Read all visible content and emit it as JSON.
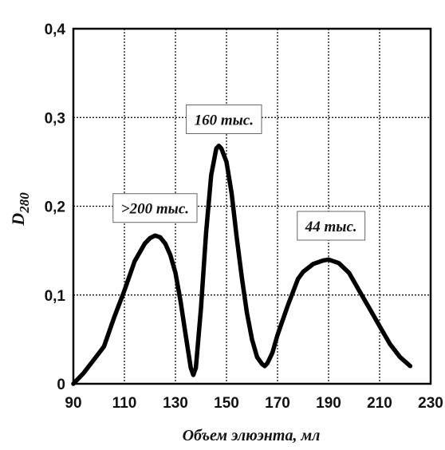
{
  "chart_data": {
    "type": "line",
    "xlabel": "Объем элюэнта, мл",
    "ylabel_main": "D",
    "ylabel_sub": "280",
    "xlim": [
      90,
      230
    ],
    "ylim": [
      0,
      0.4
    ],
    "x_ticks": [
      "90",
      "110",
      "130",
      "150",
      "170",
      "190",
      "210",
      "230"
    ],
    "y_ticks": [
      "0",
      "0,1",
      "0,2",
      "0,3",
      "0,4"
    ],
    "grid": true,
    "line_color": "#000000",
    "series": [
      {
        "x": [
          90,
          94,
          98,
          102,
          106,
          110,
          114,
          118,
          120,
          122,
          124,
          126,
          128,
          130,
          132,
          134,
          136,
          137,
          138,
          140,
          142,
          144,
          146,
          147,
          148,
          150,
          152,
          154,
          156,
          158,
          160,
          162,
          164,
          165,
          166,
          168,
          170,
          174,
          178,
          180,
          184,
          188,
          190,
          194,
          198,
          202,
          206,
          210,
          214,
          218,
          222
        ],
        "y": [
          0.0,
          0.012,
          0.027,
          0.042,
          0.075,
          0.105,
          0.138,
          0.158,
          0.164,
          0.167,
          0.165,
          0.158,
          0.145,
          0.125,
          0.093,
          0.055,
          0.018,
          0.01,
          0.018,
          0.085,
          0.17,
          0.235,
          0.265,
          0.268,
          0.265,
          0.25,
          0.215,
          0.165,
          0.12,
          0.08,
          0.05,
          0.03,
          0.022,
          0.02,
          0.023,
          0.035,
          0.055,
          0.088,
          0.118,
          0.126,
          0.135,
          0.139,
          0.14,
          0.136,
          0.125,
          0.105,
          0.085,
          0.065,
          0.045,
          0.03,
          0.02
        ]
      }
    ],
    "annotations": [
      {
        "text": ">200 тыс.",
        "x": 122,
        "y": 0.198
      },
      {
        "text": "160 тыс.",
        "x": 149,
        "y": 0.298
      },
      {
        "text": "44 тыс.",
        "x": 191,
        "y": 0.178
      }
    ]
  }
}
